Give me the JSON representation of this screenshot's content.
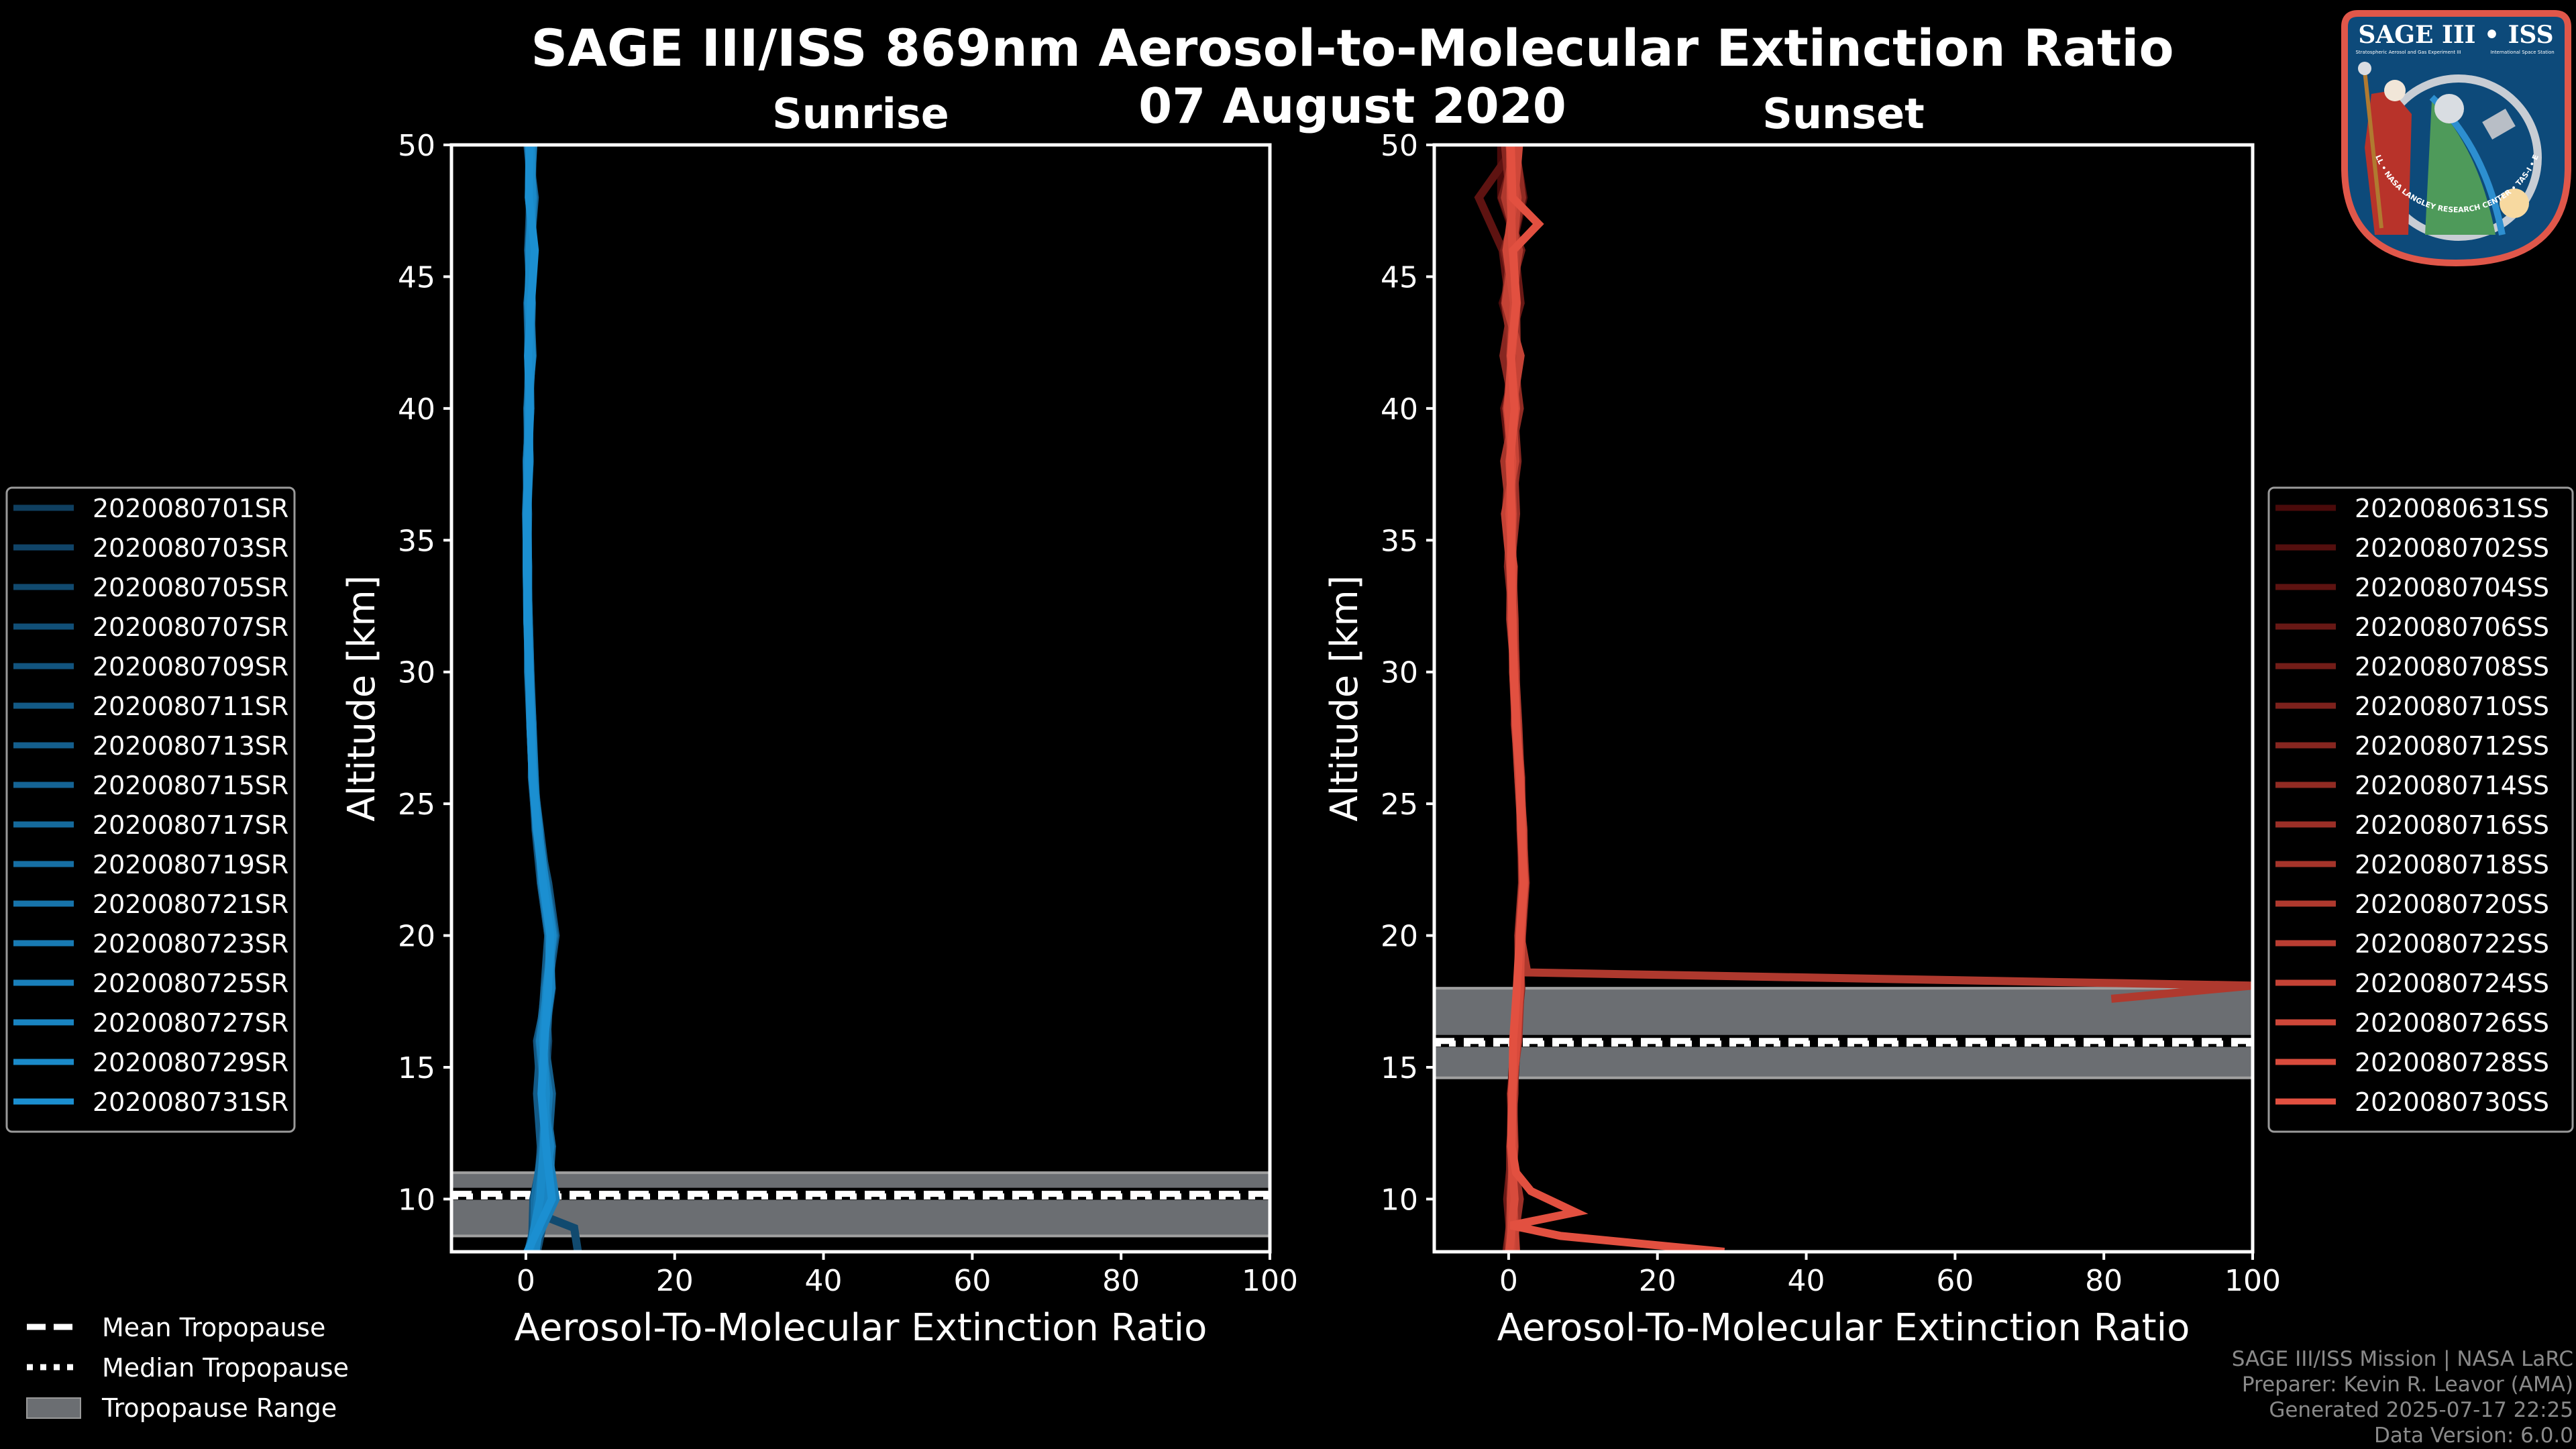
{
  "header": {
    "title": "SAGE III/ISS 869nm Aerosol-to-Molecular Extinction Ratio",
    "date": "07 August 2020"
  },
  "logo": {
    "title": "SAGE III • ISS",
    "subtitle_left": "Stratospheric Aerosol and Gas Experiment III",
    "subtitle_right": "International Space Station",
    "ring_text": "BALL • NASA LANGLEY RESEARCH CENTER • TAS-I • ESA"
  },
  "bottom_legend": {
    "mean": "Mean Tropopause",
    "median": "Median Tropopause",
    "range": "Tropopause Range"
  },
  "credits": {
    "line1": "SAGE III/ISS Mission | NASA LaRC",
    "line2": "Preparer: Kevin R. Leavor (AMA)",
    "line3": "Generated 2025-07-17 22:25",
    "line4": "Data Version: 6.0.0"
  },
  "chart_data": [
    {
      "type": "line",
      "title": "Sunrise",
      "xlabel": "Aerosol-To-Molecular Extinction Ratio",
      "ylabel": "Altitude [km]",
      "xlim": [
        -10,
        100
      ],
      "ylim": [
        8,
        50
      ],
      "xticks": [
        0,
        20,
        40,
        60,
        80,
        100
      ],
      "yticks": [
        10,
        15,
        20,
        25,
        30,
        35,
        40,
        45,
        50
      ],
      "grid": false,
      "legend_placement": "left",
      "tropopause": {
        "min": 8.6,
        "max": 11.0,
        "mean": 10.2,
        "median": 10.1
      },
      "alt": [
        8,
        10,
        12,
        14,
        16,
        18,
        20,
        22,
        24,
        26,
        28,
        30,
        32,
        34,
        36,
        38,
        40,
        42,
        44,
        46,
        48,
        50
      ],
      "series": [
        {
          "name": "2020080701SR",
          "color": "#0f3f60",
          "x": [
            1,
            2,
            3.5,
            2,
            2,
            3,
            3,
            2,
            1.5,
            1,
            0.7,
            0.4,
            0.3,
            0.2,
            0.2,
            0.4,
            0.5,
            0.6,
            0.3,
            1,
            0.7,
            0.5
          ]
        },
        {
          "name": "2020080703SR",
          "color": "#104468",
          "x": [
            0.5,
            1.5,
            2,
            2.5,
            3,
            2.5,
            3.5,
            2.5,
            1.8,
            1.1,
            0.9,
            0.5,
            0.3,
            0.1,
            0.1,
            0.2,
            0.3,
            0.8,
            0.5,
            0.4,
            0.9,
            0.2
          ]
        },
        {
          "name": "2020080705SR",
          "color": "#114a6f",
          "alt": [
            8,
            8.9,
            9.4,
            10,
            12,
            14,
            16,
            18,
            20,
            22,
            24,
            26,
            28,
            30,
            32,
            34,
            36,
            38,
            40,
            42,
            44,
            46,
            48,
            50
          ],
          "x": [
            7,
            6.5,
            2,
            1,
            2.5,
            2,
            2.5,
            3,
            3.2,
            2.4,
            1.6,
            1,
            0.8,
            0.5,
            0.3,
            0.2,
            0.1,
            0.3,
            0.4,
            0.5,
            0.4,
            0.6,
            0.5,
            0.4
          ]
        },
        {
          "name": "2020080707SR",
          "color": "#114f77",
          "x": [
            1.5,
            3,
            2.5,
            3,
            2.5,
            3.5,
            3,
            2,
            1.3,
            0.9,
            0.6,
            0.5,
            0.2,
            0.3,
            0.2,
            0.1,
            0.5,
            0.4,
            0.6,
            0.5,
            0.8,
            0.9
          ]
        },
        {
          "name": "2020080709SR",
          "color": "#12547e",
          "x": [
            0.8,
            1,
            3,
            2,
            1.5,
            3,
            4,
            3,
            1.6,
            1.2,
            0.8,
            0.6,
            0.4,
            0.2,
            0,
            0.3,
            0.2,
            0.5,
            0.7,
            0.3,
            0.6,
            0.4
          ]
        },
        {
          "name": "2020080711SR",
          "color": "#135a86",
          "x": [
            1,
            2.5,
            2,
            1.5,
            2,
            2.5,
            3,
            2.8,
            1.9,
            1,
            0.7,
            0.4,
            0.2,
            0.1,
            0.2,
            0.5,
            0.3,
            0.4,
            0.2,
            0.9,
            0.5,
            0.7
          ]
        },
        {
          "name": "2020080713SR",
          "color": "#145f8d",
          "x": [
            0.3,
            2,
            3,
            3.5,
            2.5,
            3,
            3.5,
            2.2,
            1.4,
            0.8,
            0.9,
            0.5,
            0.3,
            0.2,
            0.1,
            0.2,
            0.4,
            0.7,
            0.5,
            0.6,
            1.2,
            0.3
          ]
        },
        {
          "name": "2020080715SR",
          "color": "#156495",
          "x": [
            1.2,
            1.8,
            2.8,
            2.2,
            2.8,
            3.2,
            3.4,
            2.6,
            1.7,
            1.1,
            0.7,
            0.4,
            0.3,
            0.3,
            0.2,
            0.3,
            0.6,
            0.3,
            0.4,
            0.7,
            0.5,
            0.8
          ]
        },
        {
          "name": "2020080717SR",
          "color": "#156a9c",
          "x": [
            0.6,
            3,
            3.5,
            2.5,
            1.8,
            2.6,
            3.6,
            2.4,
            1.5,
            1,
            0.8,
            0.5,
            0.2,
            0.1,
            0.1,
            0.4,
            0.2,
            0.9,
            0.6,
            0.5,
            0.7,
            0.6
          ]
        },
        {
          "name": "2020080719SR",
          "color": "#166fa4",
          "x": [
            1.1,
            1.2,
            2.2,
            2.8,
            2.2,
            3.1,
            3.2,
            2.3,
            1.6,
            0.9,
            0.6,
            0.3,
            0.3,
            0.2,
            0.3,
            0.1,
            0.5,
            0.5,
            0.3,
            1.1,
            0.4,
            0.5
          ]
        },
        {
          "name": "2020080721SR",
          "color": "#1774ab",
          "x": [
            0.4,
            2.2,
            3.2,
            2.4,
            2.6,
            2.7,
            3.8,
            2.7,
            1.4,
            1.2,
            0.9,
            0.6,
            0.4,
            0.2,
            0.1,
            0.3,
            0.3,
            0.6,
            0.8,
            0.4,
            0.9,
            0.3
          ]
        },
        {
          "name": "2020080723SR",
          "color": "#187ab3",
          "x": [
            0.9,
            1.6,
            2.6,
            3.1,
            2.1,
            3.3,
            3.1,
            2.1,
            1.8,
            1,
            0.7,
            0.5,
            0.3,
            0.1,
            0.2,
            0.2,
            0.4,
            0.4,
            0.5,
            0.8,
            0.6,
            1
          ]
        },
        {
          "name": "2020080725SR",
          "color": "#197fba",
          "x": [
            0.7,
            4,
            2.9,
            2.6,
            1.9,
            2.9,
            3.5,
            2.5,
            1.5,
            0.9,
            0.8,
            0.4,
            0.2,
            0.2,
            0.1,
            0.5,
            0.3,
            0.7,
            0.3,
            0.6,
            1,
            0.4
          ]
        },
        {
          "name": "2020080727SR",
          "color": "#1984c2",
          "x": [
            1.3,
            2.4,
            3.3,
            2.3,
            2.4,
            3.4,
            3.3,
            2.4,
            1.6,
            1.1,
            0.7,
            0.5,
            0.3,
            0.3,
            0.2,
            0.2,
            0.6,
            0.5,
            0.6,
            0.9,
            0.5,
            0.6
          ]
        },
        {
          "name": "2020080729SR",
          "color": "#1a8ac9",
          "x": [
            0.5,
            1.9,
            2.4,
            2.7,
            2.3,
            2.8,
            3.6,
            2.6,
            1.7,
            1,
            0.8,
            0.4,
            0.3,
            0.1,
            0.1,
            0.3,
            0.4,
            0.8,
            0.4,
            0.5,
            0.8,
            0.7
          ]
        },
        {
          "name": "2020080731SR",
          "color": "#1b8fd1",
          "x": [
            0.2,
            3.5,
            2.7,
            2.1,
            2.5,
            3,
            3.3,
            2.3,
            1.5,
            0.9,
            0.6,
            0.5,
            0.2,
            0.2,
            0.2,
            0.4,
            0.5,
            0.3,
            0.7,
            1.2,
            0.4,
            0.5
          ]
        }
      ]
    },
    {
      "type": "line",
      "title": "Sunset",
      "xlabel": "Aerosol-To-Molecular Extinction Ratio",
      "ylabel": "Altitude [km]",
      "xlim": [
        -10,
        100
      ],
      "ylim": [
        8,
        50
      ],
      "xticks": [
        0,
        20,
        40,
        60,
        80,
        100
      ],
      "yticks": [
        10,
        15,
        20,
        25,
        30,
        35,
        40,
        45,
        50
      ],
      "grid": false,
      "legend_placement": "right",
      "tropopause": {
        "min": 14.6,
        "max": 18.0,
        "mean": 16.0,
        "median": 15.9
      },
      "alt": [
        8,
        10,
        12,
        14,
        16,
        18,
        20,
        22,
        24,
        26,
        28,
        30,
        32,
        34,
        36,
        38,
        40,
        42,
        44,
        46,
        48,
        50
      ],
      "series": [
        {
          "name": "2020080631SS",
          "color": "#4a0a0a",
          "x": [
            0.2,
            0.4,
            0.6,
            0.3,
            0.8,
            1.4,
            1.6,
            1.9,
            1.7,
            1.4,
            1.1,
            0.7,
            0.6,
            0.2,
            -0.3,
            0.8,
            -0.5,
            1.2,
            -0.8,
            1.5,
            -1,
            -1
          ]
        },
        {
          "name": "2020080702SS",
          "color": "#540f0e",
          "x": [
            0.5,
            0.1,
            0.3,
            0.7,
            1.1,
            1.6,
            1.3,
            2.1,
            1.9,
            1.5,
            0.9,
            0.9,
            0.4,
            0.5,
            0.6,
            -0.4,
            1.1,
            -0.2,
            1.3,
            0.4,
            2,
            0.8
          ]
        },
        {
          "name": "2020080704SS",
          "color": "#5e1311",
          "x": [
            0,
            0.7,
            0.4,
            0.6,
            0.9,
            1.5,
            1.7,
            1.8,
            1.6,
            1.6,
            1.2,
            0.6,
            0.5,
            0.1,
            0.9,
            0.2,
            -0.6,
            1.4,
            0.1,
            -0.8,
            -4,
            1
          ]
        },
        {
          "name": "2020080706SS",
          "color": "#681815",
          "x": [
            0.4,
            -0.2,
            0.5,
            0.4,
            1.2,
            1.3,
            1.5,
            2.2,
            1.8,
            1.3,
            1,
            0.8,
            0.3,
            0.6,
            -0.2,
            1,
            0.4,
            -0.4,
            1.6,
            0.8,
            0.3,
            0.2
          ]
        },
        {
          "name": "2020080708SS",
          "color": "#731d18",
          "x": [
            -0.3,
            0.6,
            0.7,
            0.5,
            1,
            1.7,
            1.4,
            1.9,
            2,
            1.5,
            0.8,
            1,
            0.7,
            0.2,
            0.4,
            -0.5,
            1.3,
            0.9,
            -0.3,
            1.7,
            -0.9,
            1.2
          ]
        },
        {
          "name": "2020080710SS",
          "color": "#7d211c",
          "x": [
            0.6,
            0.2,
            0.2,
            0.8,
            0.8,
            1.2,
            1.6,
            2,
            1.7,
            1.7,
            1.1,
            0.7,
            0.4,
            0.4,
            0.8,
            0.6,
            -0.2,
            0.3,
            0.9,
            -0.6,
            1.5,
            0.4
          ]
        },
        {
          "name": "2020080712SS",
          "color": "#872620",
          "x": [
            0.1,
            0.9,
            0.5,
            0.3,
            1.1,
            1.5,
            1.8,
            2.3,
            1.9,
            1.4,
            1,
            0.9,
            0.6,
            -0.1,
            0.3,
            1.2,
            0.7,
            -0.7,
            0.5,
            1.1,
            0.2,
            -0.5
          ]
        },
        {
          "name": "2020080714SS",
          "color": "#912b23",
          "x": [
            0.3,
            0.4,
            0.8,
            0.6,
            0.9,
            1.4,
            1.3,
            1.8,
            1.8,
            1.6,
            0.9,
            0.6,
            0.5,
            0.7,
            -0.4,
            0.1,
            1.5,
            0.6,
            -0.5,
            0.3,
            1.8,
            0.9
          ]
        },
        {
          "name": "2020080716SS",
          "color": "#9b2f27",
          "x": [
            0.5,
            1.5,
            0.3,
            0.4,
            1.3,
            1.6,
            1.5,
            2,
            1.6,
            1.5,
            1.2,
            0.8,
            0.2,
            0.3,
            1,
            0.7,
            -0.3,
            1.1,
            1,
            -0.2,
            0.6,
            0.3
          ]
        },
        {
          "name": "2020080718SS",
          "color": "#a5342a",
          "x": [
            0,
            0.3,
            0.6,
            0.7,
            1,
            1.3,
            1.7,
            2.1,
            2,
            1.4,
            1,
            0.7,
            0.7,
            0.5,
            0.2,
            -0.6,
            0.9,
            0.2,
            0.6,
            1.3,
            -0.4,
            0.7
          ]
        },
        {
          "name": "2020080720SS",
          "color": "#af392e",
          "alt": [
            50,
            48,
            46,
            44,
            42,
            40,
            38,
            36,
            34,
            32,
            30,
            28,
            26,
            24,
            22,
            20,
            18.6,
            18.1,
            17.6
          ],
          "x": [
            0.8,
            -0.5,
            1.4,
            0.2,
            0.9,
            -0.3,
            0.6,
            0.4,
            0.5,
            0.8,
            0.9,
            1.3,
            1.6,
            1.8,
            2,
            1.6,
            2.5,
            100,
            81
          ]
        },
        {
          "name": "2020080722SS",
          "color": "#b93d32",
          "x": [
            0.2,
            0.5,
            0.4,
            0.5,
            1.2,
            1.5,
            1.4,
            1.9,
            1.8,
            1.5,
            1.1,
            0.9,
            0.3,
            0.4,
            0.6,
            0.3,
            -0.2,
            0.7,
            0.4,
            0.9,
            0.2,
            0.6
          ]
        },
        {
          "name": "2020080724SS",
          "color": "#c44235",
          "x": [
            1,
            0.6,
            0.5,
            0.6,
            0.9,
            1.6,
            1.6,
            2.2,
            1.7,
            1.3,
            0.9,
            0.8,
            0.5,
            0.2,
            -0.5,
            0.9,
            0.5,
            1.6,
            -0.4,
            0.6,
            1.2,
            0.1
          ]
        },
        {
          "name": "2020080726SS",
          "color": "#ce4739",
          "x": [
            0.4,
            0.3,
            0.7,
            0.4,
            1,
            1.4,
            1.5,
            2,
            1.9,
            1.6,
            1,
            0.6,
            0.6,
            0.3,
            0.5,
            0.1,
            1,
            0.3,
            0.7,
            -0.3,
            0.8,
            1.4
          ]
        },
        {
          "name": "2020080728SS",
          "color": "#d84b3c",
          "x": [
            0.1,
            0.8,
            0.3,
            0.5,
            1.1,
            1.5,
            1.7,
            2.1,
            1.8,
            1.5,
            1.1,
            0.7,
            0.4,
            0.6,
            0.1,
            0.5,
            -0.1,
            0.4,
            1.1,
            0.5,
            0.3,
            0.2
          ]
        },
        {
          "name": "2020080730SS",
          "color": "#e25040",
          "alt": [
            8,
            8.6,
            9.0,
            9.5,
            10.3,
            11,
            12,
            14,
            16,
            18,
            20,
            22,
            24,
            26,
            28,
            30,
            32,
            34,
            36,
            38,
            40,
            42,
            44,
            46,
            47,
            48,
            50
          ],
          "x": [
            29,
            7,
            0.3,
            9,
            3,
            1,
            0.4,
            0.5,
            0.6,
            1.1,
            1.5,
            2,
            1.7,
            1.5,
            1,
            0.7,
            0.5,
            0.3,
            0.4,
            0.2,
            0.8,
            0.3,
            1,
            0.6,
            4,
            0.5,
            0.3
          ]
        }
      ]
    }
  ],
  "colors": {
    "background": "#000000",
    "axes": "#ffffff",
    "tropopause_fill": "#6b6e72",
    "tropopause_edge": "#a0a0a0",
    "credits_text": "#8a8a8a"
  }
}
